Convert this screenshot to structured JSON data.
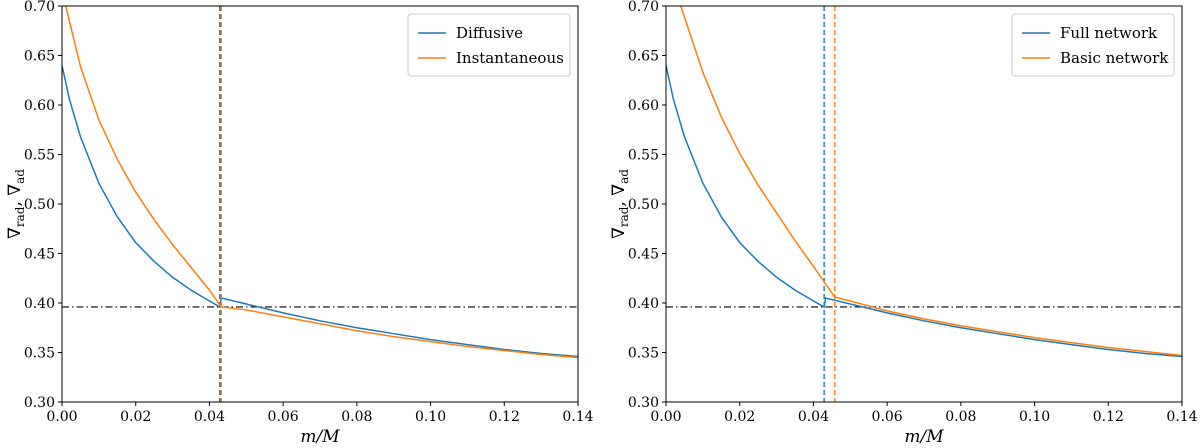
{
  "chart_data": [
    {
      "type": "line",
      "xlabel": "m/M",
      "ylabel_main": "∇",
      "ylabel_sub1": "rad",
      "ylabel_sep": ", ",
      "ylabel_sub2": "ad",
      "xlim": [
        0,
        0.14
      ],
      "ylim": [
        0.3,
        0.7
      ],
      "xticks": [
        "0.00",
        "0.02",
        "0.04",
        "0.06",
        "0.08",
        "0.10",
        "0.12",
        "0.14"
      ],
      "yticks": [
        "0.30",
        "0.35",
        "0.40",
        "0.45",
        "0.50",
        "0.55",
        "0.60",
        "0.65",
        "0.70"
      ],
      "legend_position": "top-right",
      "grid": false,
      "hline": 0.396,
      "series": [
        {
          "name": "Diffusive",
          "color": "#1f77b4",
          "vline": 0.0428,
          "points": [
            [
              0.0,
              0.64
            ],
            [
              0.002,
              0.606
            ],
            [
              0.005,
              0.568
            ],
            [
              0.01,
              0.521
            ],
            [
              0.015,
              0.487
            ],
            [
              0.02,
              0.461
            ],
            [
              0.025,
              0.442
            ],
            [
              0.03,
              0.426
            ],
            [
              0.035,
              0.413
            ],
            [
              0.04,
              0.402
            ],
            [
              0.0428,
              0.396
            ],
            [
              0.0432,
              0.405
            ],
            [
              0.05,
              0.399
            ],
            [
              0.06,
              0.39
            ],
            [
              0.07,
              0.382
            ],
            [
              0.08,
              0.375
            ],
            [
              0.09,
              0.369
            ],
            [
              0.1,
              0.363
            ],
            [
              0.11,
              0.358
            ],
            [
              0.12,
              0.353
            ],
            [
              0.13,
              0.349
            ],
            [
              0.14,
              0.346
            ]
          ]
        },
        {
          "name": "Instantaneous",
          "color": "#ff7f0e",
          "vline": 0.0432,
          "points": [
            [
              0.001,
              0.7
            ],
            [
              0.005,
              0.639
            ],
            [
              0.01,
              0.585
            ],
            [
              0.015,
              0.545
            ],
            [
              0.02,
              0.512
            ],
            [
              0.025,
              0.484
            ],
            [
              0.03,
              0.459
            ],
            [
              0.035,
              0.436
            ],
            [
              0.04,
              0.413
            ],
            [
              0.0432,
              0.396
            ],
            [
              0.05,
              0.393
            ],
            [
              0.06,
              0.386
            ],
            [
              0.07,
              0.379
            ],
            [
              0.08,
              0.372
            ],
            [
              0.09,
              0.366
            ],
            [
              0.1,
              0.361
            ],
            [
              0.11,
              0.356
            ],
            [
              0.12,
              0.352
            ],
            [
              0.13,
              0.348
            ],
            [
              0.14,
              0.345
            ]
          ]
        }
      ]
    },
    {
      "type": "line",
      "xlabel": "m/M",
      "ylabel_main": "∇",
      "ylabel_sub1": "rad",
      "ylabel_sep": ", ",
      "ylabel_sub2": "ad",
      "xlim": [
        0,
        0.14
      ],
      "ylim": [
        0.3,
        0.7
      ],
      "xticks": [
        "0.00",
        "0.02",
        "0.04",
        "0.06",
        "0.08",
        "0.10",
        "0.12",
        "0.14"
      ],
      "yticks": [
        "0.30",
        "0.35",
        "0.40",
        "0.45",
        "0.50",
        "0.55",
        "0.60",
        "0.65",
        "0.70"
      ],
      "legend_position": "top-right",
      "grid": false,
      "hline": 0.396,
      "series": [
        {
          "name": "Full network",
          "color": "#1f77b4",
          "vline": 0.0429,
          "points": [
            [
              0.0,
              0.64
            ],
            [
              0.002,
              0.606
            ],
            [
              0.005,
              0.568
            ],
            [
              0.01,
              0.521
            ],
            [
              0.015,
              0.487
            ],
            [
              0.02,
              0.461
            ],
            [
              0.025,
              0.442
            ],
            [
              0.03,
              0.426
            ],
            [
              0.035,
              0.413
            ],
            [
              0.04,
              0.402
            ],
            [
              0.0429,
              0.396
            ],
            [
              0.0433,
              0.405
            ],
            [
              0.05,
              0.399
            ],
            [
              0.06,
              0.39
            ],
            [
              0.07,
              0.382
            ],
            [
              0.08,
              0.375
            ],
            [
              0.09,
              0.369
            ],
            [
              0.1,
              0.363
            ],
            [
              0.11,
              0.358
            ],
            [
              0.12,
              0.353
            ],
            [
              0.13,
              0.349
            ],
            [
              0.14,
              0.346
            ]
          ]
        },
        {
          "name": "Basic network",
          "color": "#ff7f0e",
          "vline": 0.0458,
          "points": [
            [
              0.004,
              0.7
            ],
            [
              0.01,
              0.633
            ],
            [
              0.015,
              0.588
            ],
            [
              0.02,
              0.551
            ],
            [
              0.025,
              0.519
            ],
            [
              0.03,
              0.491
            ],
            [
              0.035,
              0.463
            ],
            [
              0.04,
              0.437
            ],
            [
              0.045,
              0.41
            ],
            [
              0.0458,
              0.406
            ],
            [
              0.05,
              0.402
            ],
            [
              0.06,
              0.392
            ],
            [
              0.07,
              0.384
            ],
            [
              0.08,
              0.377
            ],
            [
              0.09,
              0.371
            ],
            [
              0.1,
              0.365
            ],
            [
              0.11,
              0.36
            ],
            [
              0.12,
              0.355
            ],
            [
              0.13,
              0.351
            ],
            [
              0.14,
              0.347
            ]
          ]
        }
      ]
    }
  ]
}
